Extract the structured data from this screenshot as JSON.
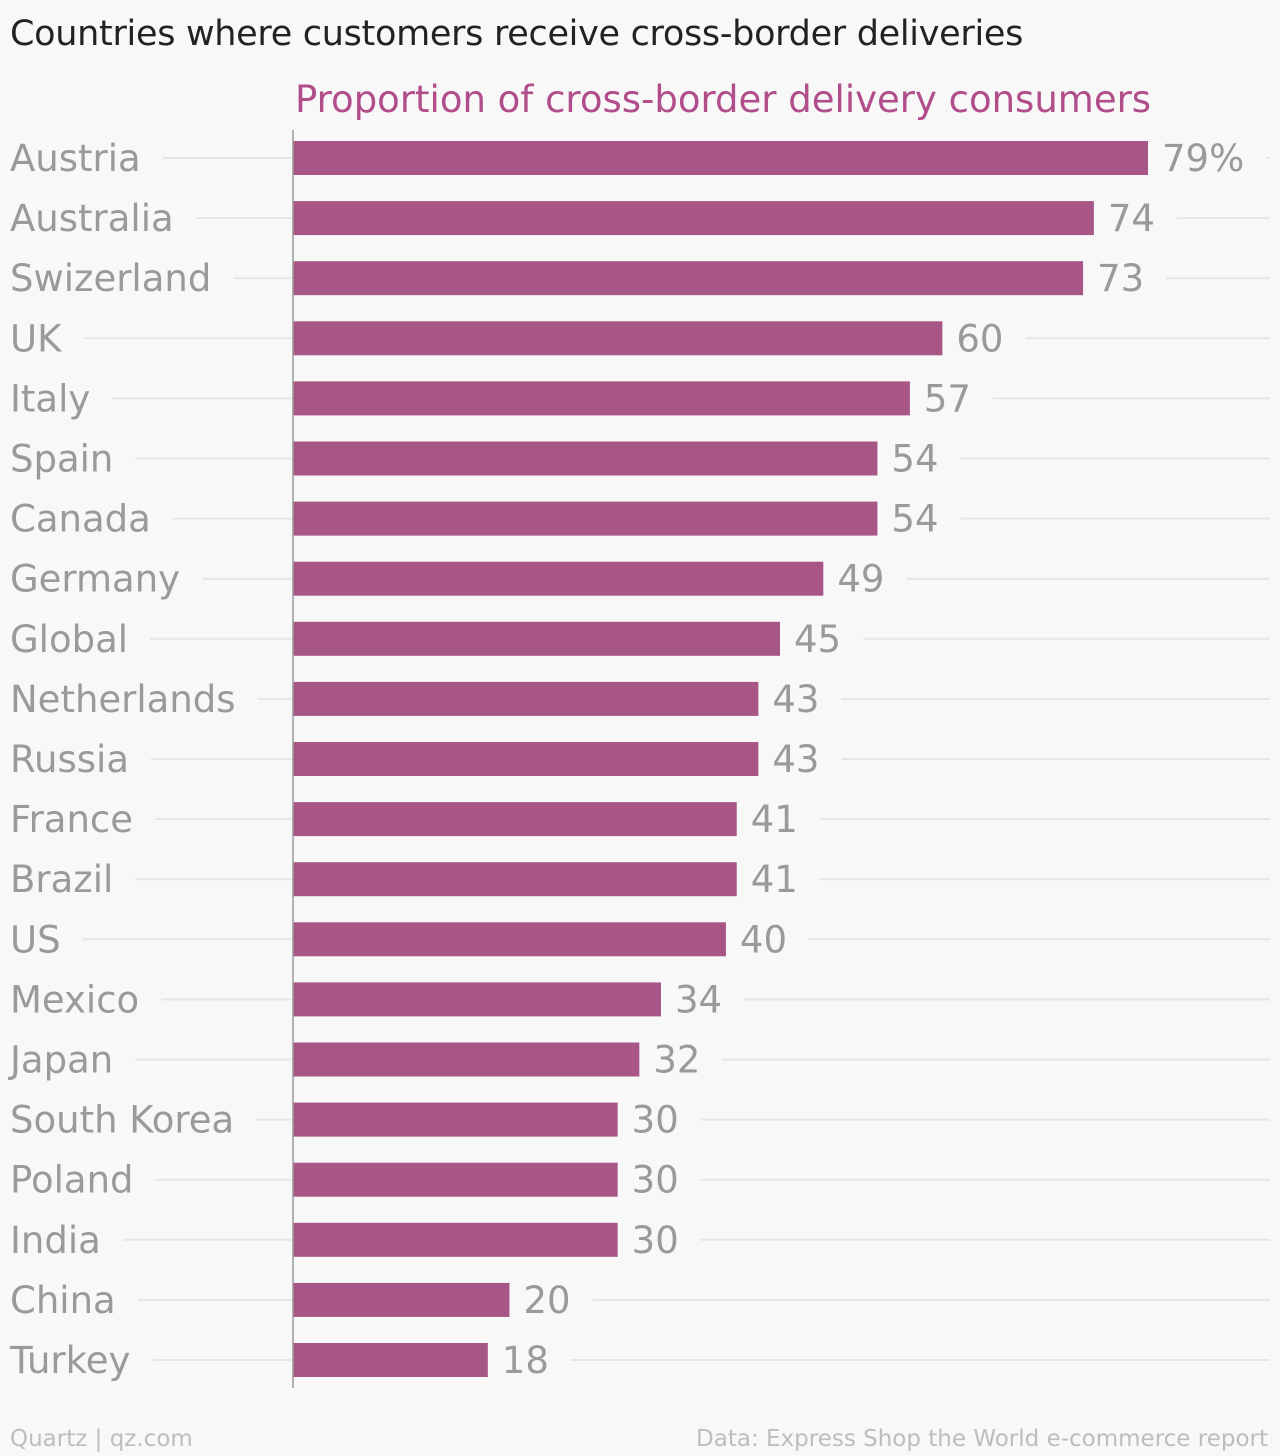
{
  "title": "Countries where customers receive cross-border deliveries",
  "footer": {
    "source_left": "Quartz | qz.com",
    "source_right": "Data: Express Shop the World e-commerce report"
  },
  "colors": {
    "bar": "#a85686",
    "series_title": "#b04d8a",
    "title": "#222222",
    "labels": "#9a9a9a",
    "gridline": "#e6e6e6",
    "axis": "#999999",
    "background": "#f8f8f8"
  },
  "chart_data": {
    "type": "bar",
    "orientation": "horizontal",
    "title": "Countries where customers receive cross-border deliveries",
    "series": [
      {
        "name": "Proportion of cross-border delivery consumers",
        "values": [
          79,
          74,
          73,
          60,
          57,
          54,
          54,
          49,
          45,
          43,
          43,
          41,
          41,
          40,
          34,
          32,
          30,
          30,
          30,
          20,
          18
        ]
      }
    ],
    "categories": [
      "Austria",
      "Australia",
      "Swizerland",
      "UK",
      "Italy",
      "Spain",
      "Canada",
      "Germany",
      "Global",
      "Netherlands",
      "Russia",
      "France",
      "Brazil",
      "US",
      "Mexico",
      "Japan",
      "South Korea",
      "Poland",
      "India",
      "China",
      "Turkey"
    ],
    "value_labels": [
      "79%",
      "74",
      "73",
      "60",
      "57",
      "54",
      "54",
      "49",
      "45",
      "43",
      "43",
      "41",
      "41",
      "40",
      "34",
      "32",
      "30",
      "30",
      "30",
      "20",
      "18"
    ],
    "xlim": [
      0,
      79
    ],
    "grid": true,
    "legend": "none"
  }
}
